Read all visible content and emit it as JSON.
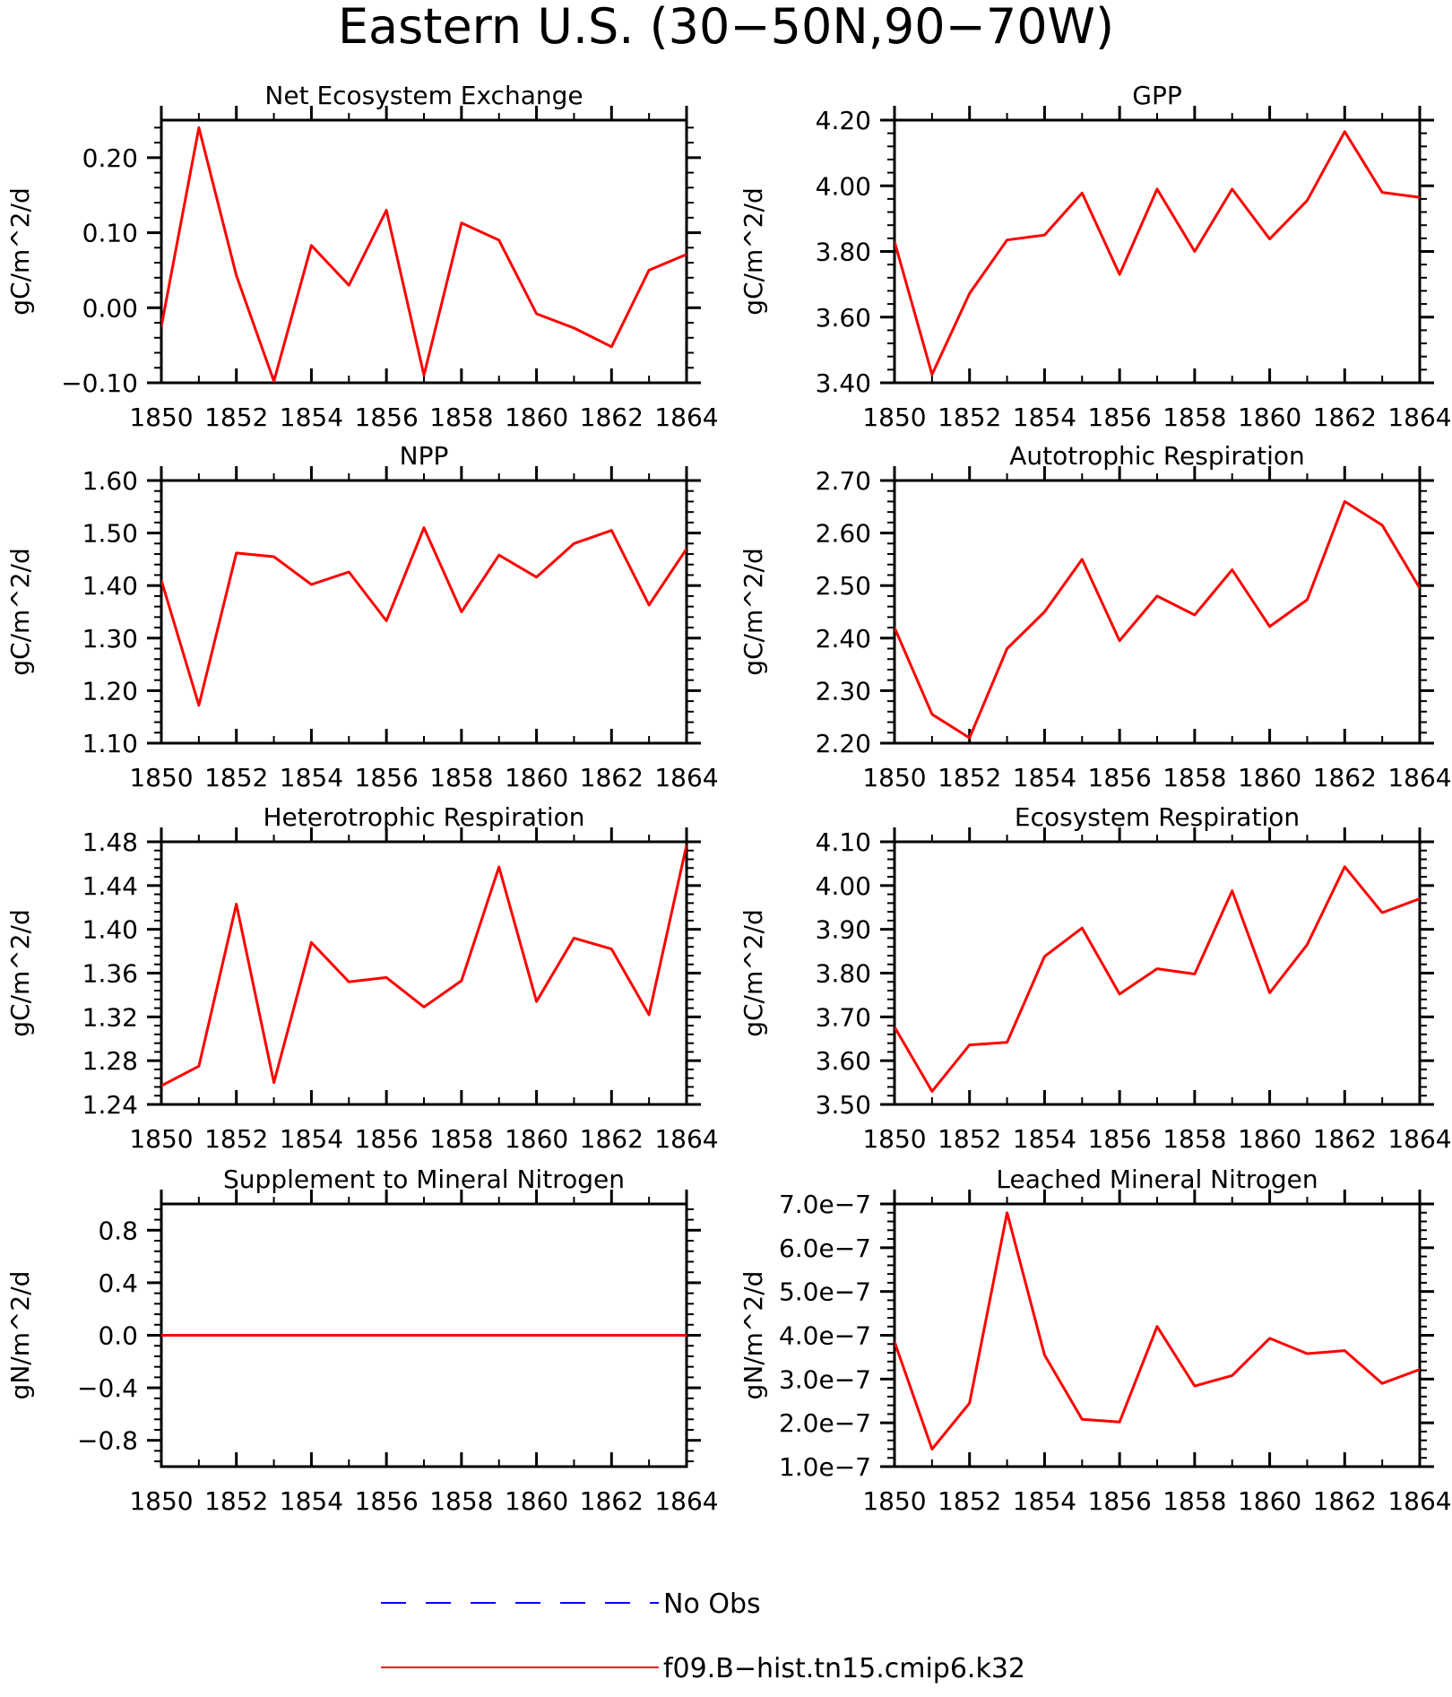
{
  "figure": {
    "title": "Eastern U.S. (30−50N,90−70W)",
    "colors": {
      "model": "#ff0000",
      "obs": "#0000ff",
      "axis": "#000000"
    }
  },
  "chart_data": [
    {
      "type": "line",
      "title": "Net Ecosystem Exchange",
      "ylabel": "gC/m^2/d",
      "xlabel": "",
      "xlim": [
        1850,
        1864
      ],
      "ylim": [
        -0.1,
        0.25
      ],
      "xticks": [
        1850,
        1852,
        1854,
        1856,
        1858,
        1860,
        1862,
        1864
      ],
      "xtick_labels": [
        "1850",
        "1852",
        "1854",
        "1856",
        "1858",
        "1860",
        "1862",
        "1864"
      ],
      "yticks": [
        -0.1,
        0.0,
        0.1,
        0.2
      ],
      "ytick_labels": [
        "−0.10",
        "0.00",
        "0.10",
        "0.20"
      ],
      "series": [
        {
          "x": [
            1850,
            1851,
            1852,
            1853,
            1854,
            1855,
            1856,
            1857,
            1858,
            1859,
            1860,
            1861,
            1862,
            1863,
            1864
          ],
          "values": [
            -0.025,
            0.24,
            0.043,
            -0.098,
            0.083,
            0.03,
            0.13,
            -0.09,
            0.113,
            0.09,
            -0.008,
            -0.027,
            -0.052,
            0.05,
            0.071
          ]
        }
      ]
    },
    {
      "type": "line",
      "title": "GPP",
      "ylabel": "gC/m^2/d",
      "xlabel": "",
      "xlim": [
        1850,
        1864
      ],
      "ylim": [
        3.4,
        4.2
      ],
      "xticks": [
        1850,
        1852,
        1854,
        1856,
        1858,
        1860,
        1862,
        1864
      ],
      "xtick_labels": [
        "1850",
        "1852",
        "1854",
        "1856",
        "1858",
        "1860",
        "1862",
        "1864"
      ],
      "yticks": [
        3.4,
        3.6,
        3.8,
        4.0,
        4.2
      ],
      "ytick_labels": [
        "3.40",
        "3.60",
        "3.80",
        "4.00",
        "4.20"
      ],
      "series": [
        {
          "x": [
            1850,
            1851,
            1852,
            1853,
            1854,
            1855,
            1856,
            1857,
            1858,
            1859,
            1860,
            1861,
            1862,
            1863,
            1864
          ],
          "values": [
            3.83,
            3.425,
            3.672,
            3.835,
            3.85,
            3.978,
            3.73,
            3.99,
            3.8,
            3.99,
            3.838,
            3.955,
            4.165,
            3.98,
            3.965
          ]
        }
      ]
    },
    {
      "type": "line",
      "title": "NPP",
      "ylabel": "gC/m^2/d",
      "xlabel": "",
      "xlim": [
        1850,
        1864
      ],
      "ylim": [
        1.1,
        1.6
      ],
      "xticks": [
        1850,
        1852,
        1854,
        1856,
        1858,
        1860,
        1862,
        1864
      ],
      "xtick_labels": [
        "1850",
        "1852",
        "1854",
        "1856",
        "1858",
        "1860",
        "1862",
        "1864"
      ],
      "yticks": [
        1.1,
        1.2,
        1.3,
        1.4,
        1.5,
        1.6
      ],
      "ytick_labels": [
        "1.10",
        "1.20",
        "1.30",
        "1.40",
        "1.50",
        "1.60"
      ],
      "series": [
        {
          "x": [
            1850,
            1851,
            1852,
            1853,
            1854,
            1855,
            1856,
            1857,
            1858,
            1859,
            1860,
            1861,
            1862,
            1863,
            1864
          ],
          "values": [
            1.41,
            1.172,
            1.462,
            1.455,
            1.402,
            1.426,
            1.333,
            1.51,
            1.35,
            1.458,
            1.416,
            1.48,
            1.505,
            1.363,
            1.47
          ]
        }
      ]
    },
    {
      "type": "line",
      "title": "Autotrophic Respiration",
      "ylabel": "gC/m^2/d",
      "xlabel": "",
      "xlim": [
        1850,
        1864
      ],
      "ylim": [
        2.2,
        2.7
      ],
      "xticks": [
        1850,
        1852,
        1854,
        1856,
        1858,
        1860,
        1862,
        1864
      ],
      "xtick_labels": [
        "1850",
        "1852",
        "1854",
        "1856",
        "1858",
        "1860",
        "1862",
        "1864"
      ],
      "yticks": [
        2.2,
        2.3,
        2.4,
        2.5,
        2.6,
        2.7
      ],
      "ytick_labels": [
        "2.20",
        "2.30",
        "2.40",
        "2.50",
        "2.60",
        "2.70"
      ],
      "series": [
        {
          "x": [
            1850,
            1851,
            1852,
            1853,
            1854,
            1855,
            1856,
            1857,
            1858,
            1859,
            1860,
            1861,
            1862,
            1863,
            1864
          ],
          "values": [
            2.42,
            2.255,
            2.21,
            2.38,
            2.45,
            2.55,
            2.395,
            2.48,
            2.444,
            2.53,
            2.422,
            2.473,
            2.66,
            2.615,
            2.495
          ]
        }
      ]
    },
    {
      "type": "line",
      "title": "Heterotrophic Respiration",
      "ylabel": "gC/m^2/d",
      "xlabel": "",
      "xlim": [
        1850,
        1864
      ],
      "ylim": [
        1.24,
        1.48
      ],
      "xticks": [
        1850,
        1852,
        1854,
        1856,
        1858,
        1860,
        1862,
        1864
      ],
      "xtick_labels": [
        "1850",
        "1852",
        "1854",
        "1856",
        "1858",
        "1860",
        "1862",
        "1864"
      ],
      "yticks": [
        1.24,
        1.28,
        1.32,
        1.36,
        1.4,
        1.44,
        1.48
      ],
      "ytick_labels": [
        "1.24",
        "1.28",
        "1.32",
        "1.36",
        "1.40",
        "1.44",
        "1.48"
      ],
      "series": [
        {
          "x": [
            1850,
            1851,
            1852,
            1853,
            1854,
            1855,
            1856,
            1857,
            1858,
            1859,
            1860,
            1861,
            1862,
            1863,
            1864
          ],
          "values": [
            1.257,
            1.275,
            1.423,
            1.26,
            1.388,
            1.352,
            1.356,
            1.329,
            1.353,
            1.457,
            1.334,
            1.392,
            1.382,
            1.322,
            1.477
          ]
        }
      ]
    },
    {
      "type": "line",
      "title": "Ecosystem Respiration",
      "ylabel": "gC/m^2/d",
      "xlabel": "",
      "xlim": [
        1850,
        1864
      ],
      "ylim": [
        3.5,
        4.1
      ],
      "xticks": [
        1850,
        1852,
        1854,
        1856,
        1858,
        1860,
        1862,
        1864
      ],
      "xtick_labels": [
        "1850",
        "1852",
        "1854",
        "1856",
        "1858",
        "1860",
        "1862",
        "1864"
      ],
      "yticks": [
        3.5,
        3.6,
        3.7,
        3.8,
        3.9,
        4.0,
        4.1
      ],
      "ytick_labels": [
        "3.50",
        "3.60",
        "3.70",
        "3.80",
        "3.90",
        "4.00",
        "4.10"
      ],
      "series": [
        {
          "x": [
            1850,
            1851,
            1852,
            1853,
            1854,
            1855,
            1856,
            1857,
            1858,
            1859,
            1860,
            1861,
            1862,
            1863,
            1864
          ],
          "values": [
            3.677,
            3.53,
            3.636,
            3.642,
            3.838,
            3.903,
            3.752,
            3.81,
            3.798,
            3.988,
            3.755,
            3.865,
            4.043,
            3.938,
            3.97
          ]
        }
      ]
    },
    {
      "type": "line",
      "title": "Supplement to Mineral Nitrogen",
      "ylabel": "gN/m^2/d",
      "xlabel": "",
      "xlim": [
        1850,
        1864
      ],
      "ylim": [
        -1.0,
        1.0
      ],
      "xticks": [
        1850,
        1852,
        1854,
        1856,
        1858,
        1860,
        1862,
        1864
      ],
      "xtick_labels": [
        "1850",
        "1852",
        "1854",
        "1856",
        "1858",
        "1860",
        "1862",
        "1864"
      ],
      "yticks": [
        -0.8,
        -0.4,
        0.0,
        0.4,
        0.8
      ],
      "ytick_labels": [
        "−0.8",
        "−0.4",
        "0.0",
        "0.4",
        "0.8"
      ],
      "series": [
        {
          "x": [
            1850,
            1851,
            1852,
            1853,
            1854,
            1855,
            1856,
            1857,
            1858,
            1859,
            1860,
            1861,
            1862,
            1863,
            1864
          ],
          "values": [
            0,
            0,
            0,
            0,
            0,
            0,
            0,
            0,
            0,
            0,
            0,
            0,
            0,
            0,
            0
          ]
        }
      ]
    },
    {
      "type": "line",
      "title": "Leached Mineral Nitrogen",
      "ylabel": "gN/m^2/d",
      "xlabel": "",
      "xlim": [
        1850,
        1864
      ],
      "ylim": [
        1e-07,
        7e-07
      ],
      "xticks": [
        1850,
        1852,
        1854,
        1856,
        1858,
        1860,
        1862,
        1864
      ],
      "xtick_labels": [
        "1850",
        "1852",
        "1854",
        "1856",
        "1858",
        "1860",
        "1862",
        "1864"
      ],
      "yticks": [
        1e-07,
        2e-07,
        3e-07,
        4e-07,
        5e-07,
        6e-07,
        7e-07
      ],
      "ytick_labels": [
        "1.0e−7",
        "2.0e−7",
        "3.0e−7",
        "4.0e−7",
        "5.0e−7",
        "6.0e−7",
        "7.0e−7"
      ],
      "series": [
        {
          "x": [
            1850,
            1851,
            1852,
            1853,
            1854,
            1855,
            1856,
            1857,
            1858,
            1859,
            1860,
            1861,
            1862,
            1863,
            1864
          ],
          "values": [
            3.85e-07,
            1.4e-07,
            2.45e-07,
            6.8e-07,
            3.55e-07,
            2.08e-07,
            2.02e-07,
            4.2e-07,
            2.84e-07,
            3.08e-07,
            3.93e-07,
            3.58e-07,
            3.65e-07,
            2.9e-07,
            3.22e-07
          ]
        }
      ]
    }
  ],
  "legend": {
    "placement": "bottom-center",
    "items": [
      {
        "label": "No Obs",
        "style": "dashed",
        "color": "#0000ff"
      },
      {
        "label": "f09.B−hist.tn15.cmip6.k32",
        "style": "solid",
        "color": "#ff0000"
      }
    ]
  }
}
